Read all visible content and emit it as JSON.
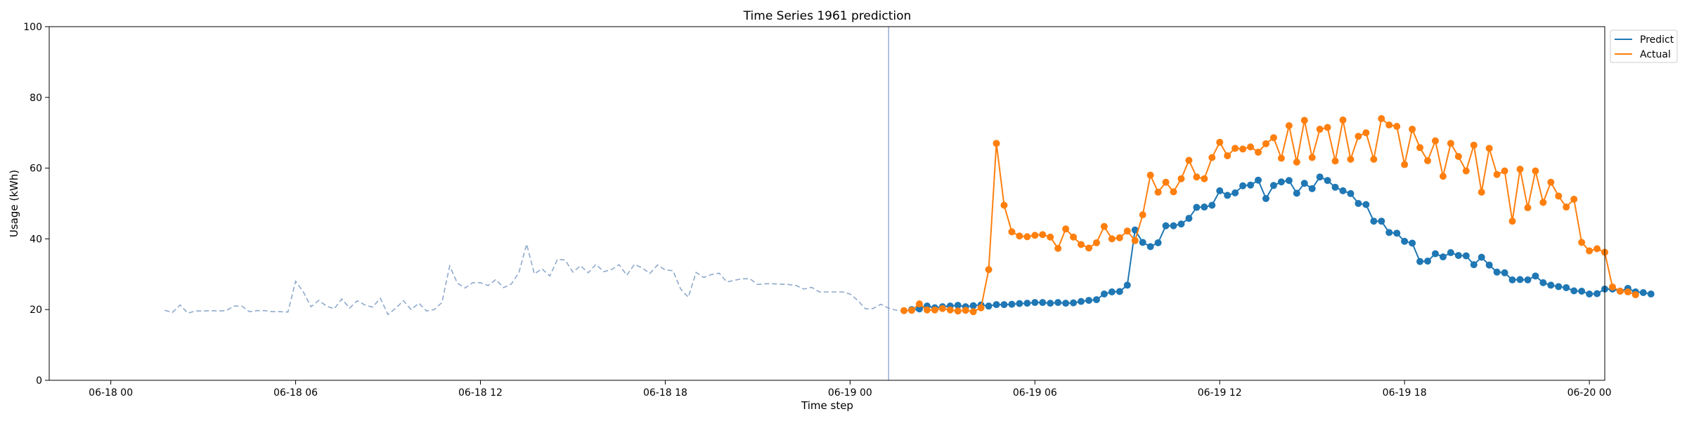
{
  "chart_data": {
    "type": "line",
    "title": "Time Series 1961 prediction",
    "xlabel": "Time step",
    "ylabel": "Usage (kWh)",
    "ylim": [
      0,
      100
    ],
    "yticks": [
      0,
      20,
      40,
      60,
      80,
      100
    ],
    "xlim_hours": [
      -2,
      48.5
    ],
    "xticks": [
      {
        "hour": 0,
        "label": "06-18 00"
      },
      {
        "hour": 6,
        "label": "06-18 06"
      },
      {
        "hour": 12,
        "label": "06-18 12"
      },
      {
        "hour": 18,
        "label": "06-18 18"
      },
      {
        "hour": 24,
        "label": "06-19 00"
      },
      {
        "hour": 30,
        "label": "06-19 06"
      },
      {
        "hour": 36,
        "label": "06-19 12"
      },
      {
        "hour": 42,
        "label": "06-19 18"
      },
      {
        "hour": 48,
        "label": "06-20 00"
      }
    ],
    "time_step_hours": 0.25,
    "forecast_boundary_hour": 25.25,
    "legend": {
      "position": "top-right",
      "entries": [
        {
          "name": "Predict",
          "color": "#1f77b4"
        },
        {
          "name": "Actual",
          "color": "#ff7f0e"
        }
      ]
    },
    "series": [
      {
        "name": "History",
        "color": "#8fa9cc",
        "style": "dashed",
        "in_legend": false,
        "start_hour": 1.75,
        "values": [
          19.8,
          19.2,
          21.3,
          19.0,
          19.6,
          19.6,
          19.7,
          19.6,
          19.7,
          21.0,
          21.0,
          19.4,
          19.7,
          19.7,
          19.4,
          19.4,
          19.3,
          28.0,
          25.0,
          20.8,
          22.6,
          21.0,
          20.2,
          23.0,
          20.4,
          22.5,
          21.3,
          20.7,
          23.2,
          18.6,
          20.4,
          22.5,
          20.0,
          21.8,
          19.6,
          20.0,
          22.0,
          32.3,
          27.5,
          26.1,
          27.6,
          27.6,
          26.8,
          28.5,
          26.2,
          27.2,
          30.5,
          38.5,
          30.1,
          31.5,
          29.5,
          34.2,
          34.0,
          30.6,
          32.4,
          30.4,
          32.8,
          30.7,
          31.3,
          32.7,
          29.7,
          32.8,
          31.8,
          30.2,
          32.6,
          31.2,
          31.0,
          25.8,
          23.5,
          30.5,
          29.1,
          29.9,
          30.3,
          27.8,
          28.3,
          28.7,
          28.7,
          27.1,
          27.3,
          27.3,
          27.2,
          27.1,
          26.8,
          25.8,
          26.3,
          25.0,
          25.0,
          25.0,
          25.0,
          24.4,
          22.6,
          20.2,
          20.3,
          21.5,
          20.4,
          19.8,
          19.6,
          19.7,
          19.8
        ]
      },
      {
        "name": "Predict",
        "color": "#1f77b4",
        "style": "solid-markers",
        "in_legend": true,
        "start_hour": 26.0,
        "values": [
          20.0,
          20.2,
          21.0,
          20.5,
          20.8,
          21.0,
          21.2,
          20.8,
          21.1,
          21.3,
          21.0,
          21.4,
          21.4,
          21.5,
          21.7,
          21.8,
          22.0,
          22.0,
          21.8,
          22.0,
          21.8,
          21.9,
          22.3,
          22.6,
          22.8,
          24.4,
          25.0,
          25.1,
          26.9,
          42.5,
          39.0,
          37.8,
          38.9,
          43.7,
          43.7,
          44.2,
          45.8,
          48.9,
          49.0,
          49.5,
          53.6,
          52.3,
          53.0,
          55.0,
          55.2,
          56.6,
          51.4,
          55.1,
          56.1,
          56.5,
          52.9,
          55.7,
          54.2,
          57.5,
          56.5,
          54.6,
          53.6,
          52.8,
          50.0,
          49.7,
          45.0,
          45.0,
          41.8,
          41.6,
          39.3,
          38.8,
          33.6,
          33.7,
          35.8,
          34.9,
          36.1,
          35.3,
          35.2,
          32.7,
          34.8,
          32.6,
          30.6,
          30.4,
          28.4,
          28.5,
          28.4,
          29.5,
          27.6,
          26.9,
          26.5,
          26.2,
          25.3,
          25.2,
          24.4,
          24.5,
          25.8,
          25.8,
          25.2,
          26.0,
          25.0,
          24.8,
          24.4
        ]
      },
      {
        "name": "Actual",
        "color": "#ff7f0e",
        "style": "solid-markers",
        "in_legend": true,
        "start_hour": 25.75,
        "values": [
          19.7,
          19.8,
          21.6,
          19.9,
          19.9,
          20.3,
          19.9,
          19.6,
          19.8,
          19.4,
          20.5,
          31.3,
          67.0,
          49.5,
          42.0,
          40.8,
          40.6,
          41.0,
          41.2,
          40.5,
          37.3,
          42.8,
          40.5,
          38.4,
          37.4,
          38.9,
          43.5,
          40.0,
          40.3,
          42.2,
          39.5,
          46.8,
          58.0,
          53.2,
          56.0,
          53.3,
          57.0,
          62.2,
          57.5,
          57.0,
          63.0,
          67.3,
          63.5,
          65.6,
          65.4,
          66.0,
          64.5,
          66.9,
          68.6,
          62.8,
          72.0,
          61.7,
          73.5,
          63.0,
          71.0,
          71.5,
          62.0,
          73.6,
          62.5,
          69.0,
          70.0,
          62.5,
          74.0,
          72.2,
          71.8,
          61.0,
          71.0,
          65.8,
          62.1,
          67.7,
          57.7,
          67.0,
          63.3,
          59.2,
          66.5,
          53.2,
          65.6,
          58.2,
          59.2,
          45.0,
          59.7,
          48.8,
          59.2,
          50.3,
          56.0,
          52.1,
          49.0,
          51.2,
          39.0,
          36.6,
          37.2,
          36.2,
          26.4,
          25.2,
          25.0,
          24.2
        ]
      }
    ]
  }
}
